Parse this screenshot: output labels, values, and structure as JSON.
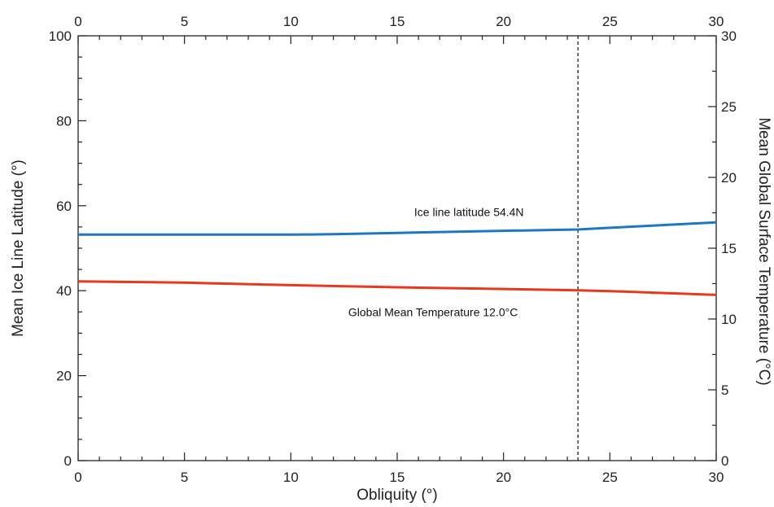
{
  "chart_data": {
    "type": "line",
    "xlabel": "Obliquity (°)",
    "ylabel_left": "Mean Ice Line Latitude (°)",
    "ylabel_right": "Mean Global Surface Temperature (°C)",
    "xlim": [
      0,
      30
    ],
    "ylim_left": [
      0,
      100
    ],
    "ylim_right": [
      0,
      30
    ],
    "x_ticks": [
      0,
      5,
      10,
      15,
      20,
      25,
      30
    ],
    "y_left_ticks": [
      0,
      20,
      40,
      60,
      80,
      100
    ],
    "y_right_ticks": [
      0,
      5,
      10,
      15,
      20,
      25,
      30
    ],
    "grid": false,
    "marker_line": {
      "x": 23.5,
      "style": "dashed"
    },
    "series": [
      {
        "axis": "left",
        "color": "#1f77c4",
        "x": [
          0,
          5,
          10,
          12,
          15,
          18,
          20,
          23.5,
          25,
          27,
          30
        ],
        "y": [
          53.2,
          53.2,
          53.2,
          53.3,
          53.6,
          53.9,
          54.1,
          54.4,
          54.8,
          55.3,
          56.1
        ]
      },
      {
        "axis": "left",
        "color": "#e8381d",
        "x": [
          0,
          5,
          10,
          15,
          20,
          23.5,
          25,
          30
        ],
        "y": [
          42.2,
          41.9,
          41.3,
          40.8,
          40.4,
          40.1,
          39.9,
          39.0
        ]
      }
    ],
    "annotations": [
      {
        "text": "Ice line latitude 54.4N",
        "x": 15.8,
        "y": 57.6
      },
      {
        "text": "Global Mean Temperature 12.0°C",
        "x": 12.7,
        "y": 34.0
      }
    ]
  }
}
